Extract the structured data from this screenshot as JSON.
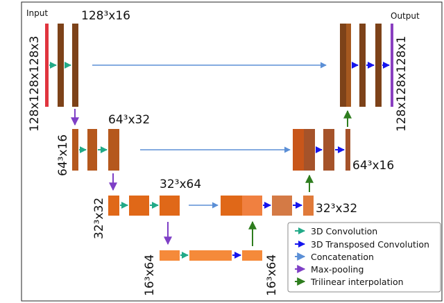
{
  "labels": {
    "input": "Input",
    "output": "Output",
    "l1_top": "128³x16",
    "l1_left": "128x128x128x3",
    "l1_right": "128x128x128x1",
    "l2_top": "64³x32",
    "l2_left": "64³x16",
    "l2_right": "64³x16",
    "l3_top": "32³x64",
    "l3_left": "32³x32",
    "l3_right": "32³x32",
    "l4_left": "16³x64",
    "l4_right": "16³x64"
  },
  "legend": [
    {
      "label": "3D Convolution",
      "color": "#22aa88"
    },
    {
      "label": "3D Transposed Convolution",
      "color": "#1515ee"
    },
    {
      "label": "Concatenation",
      "color": "#5b8fd6"
    },
    {
      "label": "Max-pooling",
      "color": "#7e3fc6"
    },
    {
      "label": "Trilinear interpolation",
      "color": "#2e7d1e"
    }
  ],
  "colors": {
    "input_bar": "#e0343e",
    "output_bar": "#8a3fc0",
    "level1": "#7d4219",
    "level2": "#b5581d",
    "level3": "#e06818",
    "level3_light": "#f08040",
    "level4": "#f58a3a",
    "conv": "#22aa88",
    "transconv": "#1515ee",
    "concat": "#5b8fd6",
    "pool": "#7e3fc6",
    "interp": "#2e7d1e"
  }
}
